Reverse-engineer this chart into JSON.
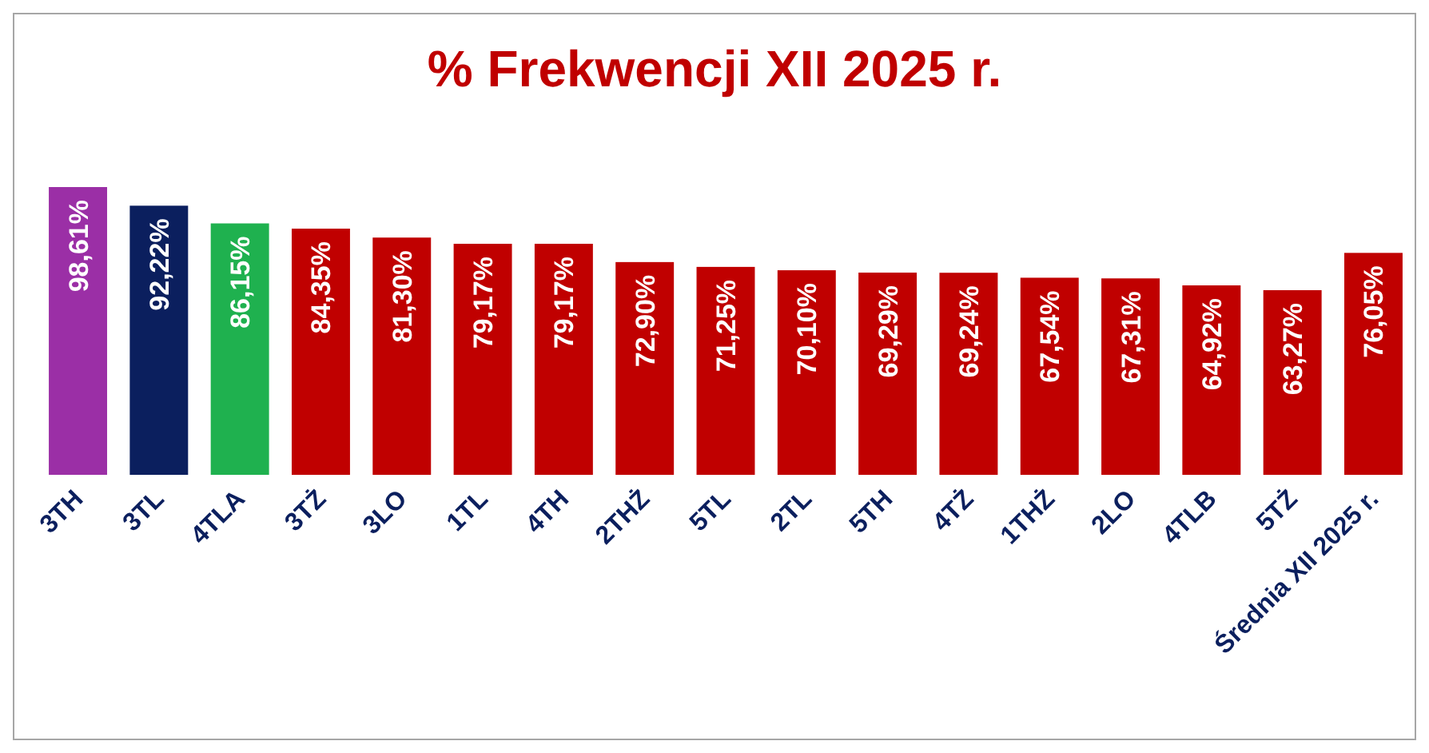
{
  "chart_data": {
    "type": "bar",
    "title": "% Frekwencji XII 2025 r.",
    "categories": [
      "3TH",
      "3TL",
      "4TLA",
      "3TŻ",
      "3LO",
      "1TL",
      "4TH",
      "2THŻ",
      "5TL",
      "2TL",
      "5TH",
      "4TŻ",
      "1THŻ",
      "2LO",
      "4TLB",
      "5TŻ",
      "Średnia XII 2025 r."
    ],
    "values": [
      98.61,
      92.22,
      86.15,
      84.35,
      81.3,
      79.17,
      79.17,
      72.9,
      71.25,
      70.1,
      69.29,
      69.24,
      67.54,
      67.31,
      64.92,
      63.27,
      76.05
    ],
    "value_labels": [
      "98,61%",
      "92,22%",
      "86,15%",
      "84,35%",
      "81,30%",
      "79,17%",
      "79,17%",
      "72,90%",
      "71,25%",
      "70,10%",
      "69,29%",
      "69,24%",
      "67,54%",
      "67,31%",
      "64,92%",
      "63,27%",
      "76,05%"
    ],
    "colors": [
      "#9b2fa6",
      "#0b1f5e",
      "#1fb14f",
      "#c00000",
      "#c00000",
      "#c00000",
      "#c00000",
      "#c00000",
      "#c00000",
      "#c00000",
      "#c00000",
      "#c00000",
      "#c00000",
      "#c00000",
      "#c00000",
      "#c00000",
      "#c00000"
    ]
  }
}
